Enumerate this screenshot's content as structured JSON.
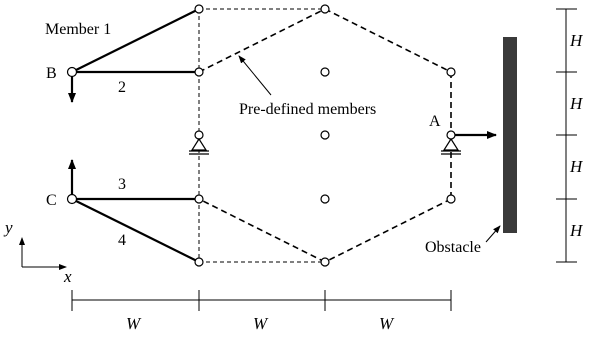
{
  "labels": {
    "member1": "Member 1",
    "member2": "2",
    "member3": "3",
    "member4": "4",
    "nodeB": "B",
    "nodeC": "C",
    "nodeA": "A",
    "predefined": "Pre-defined members",
    "obstacle": "Obstacle",
    "axisX": "x",
    "axisY": "y",
    "dimW": [
      "W",
      "W",
      "W"
    ],
    "dimH": [
      "H",
      "H",
      "H",
      "H"
    ]
  },
  "colors": {
    "line": "#000000",
    "obstacle": "#3a3a3a"
  }
}
